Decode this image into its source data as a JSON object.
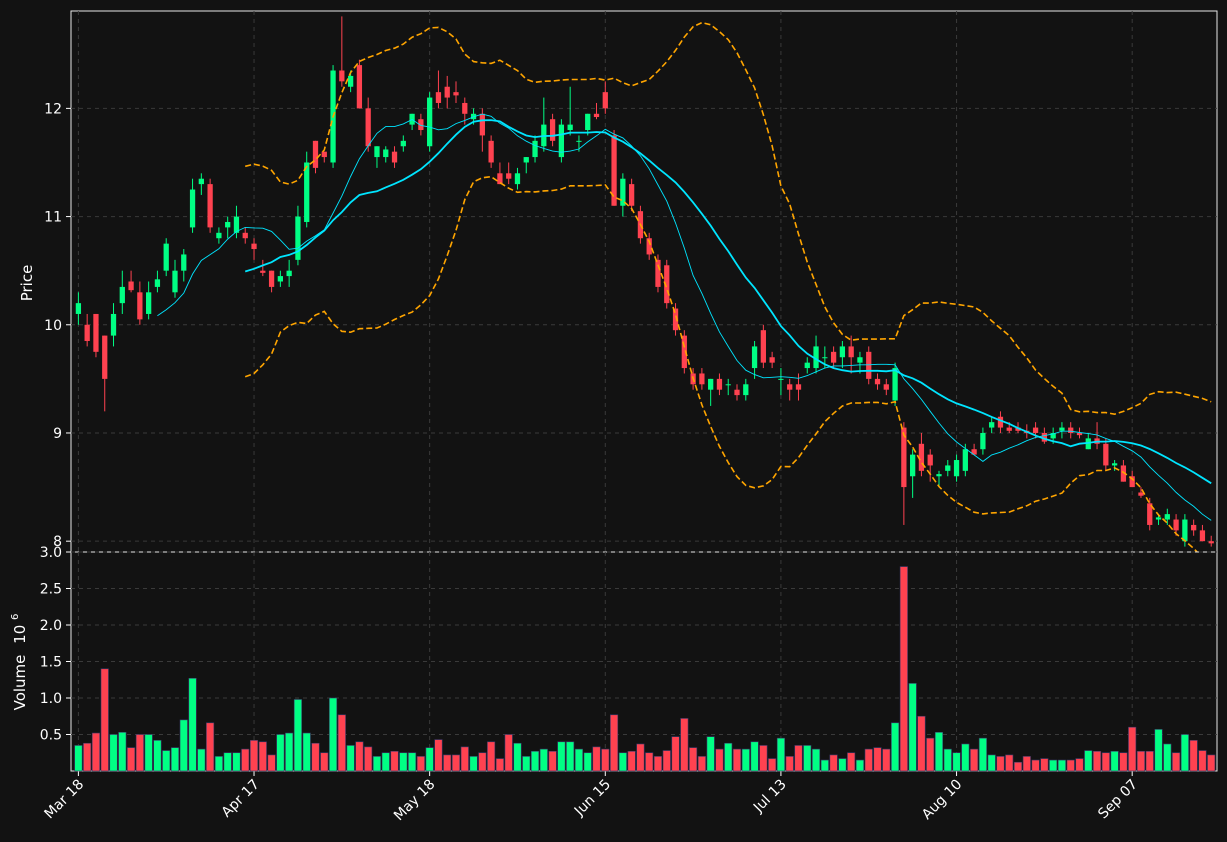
{
  "chart_data": {
    "type": "candlestick",
    "style": {
      "background": "#121212",
      "up_color": "#00ff84",
      "down_color": "#ff4250",
      "sma_fast_color": "#00e5ff",
      "sma_slow_color": "#00e5ff",
      "band_color": "#ffa500",
      "grid": true
    },
    "price_panel": {
      "ylabel": "Price",
      "ylim": [
        7.9,
        12.9
      ],
      "yticks": [
        8,
        9,
        10,
        11,
        12
      ]
    },
    "volume_panel": {
      "ylabel": "Volume",
      "exponent_label": "10",
      "exponent_power": "6",
      "ylim": [
        0,
        3.0
      ],
      "yticks": [
        "0.5",
        "1.0",
        "1.5",
        "2.0",
        "2.5",
        "3.0"
      ]
    },
    "x_axis": {
      "tick_labels": [
        "Mar 18",
        "Apr 17",
        "May 18",
        "Jun 15",
        "Jul 13",
        "Aug 10",
        "Sep 07"
      ],
      "tick_index": [
        0,
        20,
        40,
        60,
        80,
        100,
        120
      ],
      "count": 130
    },
    "candles": [
      [
        10.1,
        10.3,
        10.0,
        10.2
      ],
      [
        10.0,
        10.1,
        9.8,
        9.85
      ],
      [
        10.1,
        10.1,
        9.7,
        9.75
      ],
      [
        9.9,
        9.9,
        9.2,
        9.5
      ],
      [
        9.9,
        10.2,
        9.8,
        10.1
      ],
      [
        10.2,
        10.5,
        10.1,
        10.35
      ],
      [
        10.4,
        10.5,
        10.3,
        10.32
      ],
      [
        10.3,
        10.4,
        10.0,
        10.05
      ],
      [
        10.1,
        10.4,
        10.05,
        10.3
      ],
      [
        10.35,
        10.5,
        10.3,
        10.42
      ],
      [
        10.5,
        10.8,
        10.45,
        10.75
      ],
      [
        10.3,
        10.6,
        10.25,
        10.5
      ],
      [
        10.5,
        10.7,
        10.4,
        10.65
      ],
      [
        10.9,
        11.35,
        10.85,
        11.25
      ],
      [
        11.3,
        11.4,
        11.2,
        11.35
      ],
      [
        11.3,
        11.35,
        10.85,
        10.9
      ],
      [
        10.8,
        10.9,
        10.75,
        10.85
      ],
      [
        10.9,
        11.0,
        10.8,
        10.95
      ],
      [
        10.85,
        11.1,
        10.8,
        11.0
      ],
      [
        10.85,
        10.9,
        10.75,
        10.8
      ],
      [
        10.75,
        10.8,
        10.6,
        10.7
      ],
      [
        10.5,
        10.6,
        10.45,
        10.48
      ],
      [
        10.5,
        10.5,
        10.3,
        10.35
      ],
      [
        10.4,
        10.5,
        10.35,
        10.45
      ],
      [
        10.45,
        10.6,
        10.35,
        10.5
      ],
      [
        10.6,
        11.1,
        10.55,
        11.0
      ],
      [
        10.95,
        11.6,
        10.9,
        11.5
      ],
      [
        11.7,
        11.7,
        11.4,
        11.45
      ],
      [
        11.6,
        11.6,
        11.5,
        11.55
      ],
      [
        11.5,
        12.4,
        11.45,
        12.35
      ],
      [
        12.35,
        12.85,
        12.2,
        12.25
      ],
      [
        12.2,
        12.35,
        12.15,
        12.3
      ],
      [
        12.4,
        12.45,
        12.0,
        12.0
      ],
      [
        12.0,
        12.1,
        11.6,
        11.65
      ],
      [
        11.55,
        11.65,
        11.45,
        11.65
      ],
      [
        11.55,
        11.65,
        11.5,
        11.62
      ],
      [
        11.6,
        11.65,
        11.45,
        11.5
      ],
      [
        11.65,
        11.75,
        11.6,
        11.7
      ],
      [
        11.85,
        11.95,
        11.8,
        11.95
      ],
      [
        11.9,
        11.95,
        11.75,
        11.8
      ],
      [
        11.65,
        12.15,
        11.6,
        12.1
      ],
      [
        12.15,
        12.35,
        12.0,
        12.05
      ],
      [
        12.2,
        12.3,
        12.0,
        12.1
      ],
      [
        12.15,
        12.25,
        12.05,
        12.12
      ],
      [
        12.05,
        12.1,
        11.85,
        11.95
      ],
      [
        11.9,
        12.0,
        11.85,
        11.95
      ],
      [
        11.95,
        12.0,
        11.6,
        11.75
      ],
      [
        11.7,
        11.75,
        11.45,
        11.5
      ],
      [
        11.4,
        11.5,
        11.3,
        11.3
      ],
      [
        11.4,
        11.5,
        11.3,
        11.35
      ],
      [
        11.3,
        11.45,
        11.25,
        11.4
      ],
      [
        11.5,
        11.55,
        11.4,
        11.55
      ],
      [
        11.55,
        11.75,
        11.5,
        11.7
      ],
      [
        11.65,
        12.1,
        11.6,
        11.85
      ],
      [
        11.9,
        11.95,
        11.65,
        11.7
      ],
      [
        11.55,
        11.9,
        11.5,
        11.85
      ],
      [
        11.8,
        12.2,
        11.75,
        11.85
      ],
      [
        11.7,
        11.75,
        11.6,
        11.7
      ],
      [
        11.8,
        11.95,
        11.75,
        11.95
      ],
      [
        11.95,
        12.05,
        11.9,
        11.92
      ],
      [
        12.15,
        12.25,
        11.95,
        12.0
      ],
      [
        11.75,
        11.8,
        11.1,
        11.1
      ],
      [
        11.1,
        11.4,
        11.0,
        11.35
      ],
      [
        11.3,
        11.35,
        11.05,
        11.1
      ],
      [
        11.05,
        11.1,
        10.75,
        10.8
      ],
      [
        10.8,
        10.85,
        10.6,
        10.65
      ],
      [
        10.6,
        10.65,
        10.3,
        10.35
      ],
      [
        10.55,
        10.6,
        10.15,
        10.2
      ],
      [
        10.15,
        10.2,
        9.9,
        9.95
      ],
      [
        9.9,
        9.95,
        9.55,
        9.6
      ],
      [
        9.55,
        9.6,
        9.4,
        9.45
      ],
      [
        9.55,
        9.6,
        9.4,
        9.45
      ],
      [
        9.4,
        9.5,
        9.25,
        9.5
      ],
      [
        9.5,
        9.55,
        9.35,
        9.4
      ],
      [
        9.45,
        9.5,
        9.35,
        9.45
      ],
      [
        9.4,
        9.45,
        9.3,
        9.35
      ],
      [
        9.35,
        9.5,
        9.3,
        9.45
      ],
      [
        9.6,
        9.85,
        9.5,
        9.8
      ],
      [
        9.95,
        10.0,
        9.6,
        9.65
      ],
      [
        9.7,
        9.75,
        9.6,
        9.65
      ],
      [
        9.5,
        9.6,
        9.35,
        9.5
      ],
      [
        9.45,
        9.5,
        9.3,
        9.4
      ],
      [
        9.45,
        9.55,
        9.3,
        9.4
      ],
      [
        9.6,
        9.7,
        9.55,
        9.65
      ],
      [
        9.6,
        9.9,
        9.55,
        9.8
      ],
      [
        9.7,
        9.8,
        9.6,
        9.7
      ],
      [
        9.75,
        9.8,
        9.6,
        9.65
      ],
      [
        9.7,
        9.85,
        9.6,
        9.8
      ],
      [
        9.8,
        9.9,
        9.55,
        9.7
      ],
      [
        9.65,
        9.75,
        9.55,
        9.7
      ],
      [
        9.75,
        9.8,
        9.45,
        9.5
      ],
      [
        9.5,
        9.55,
        9.4,
        9.45
      ],
      [
        9.45,
        9.5,
        9.35,
        9.4
      ],
      [
        9.3,
        9.65,
        9.25,
        9.6
      ],
      [
        9.05,
        9.1,
        8.15,
        8.5
      ],
      [
        8.6,
        8.85,
        8.4,
        8.8
      ],
      [
        8.9,
        9.0,
        8.6,
        8.65
      ],
      [
        8.8,
        8.85,
        8.55,
        8.7
      ],
      [
        8.6,
        8.65,
        8.5,
        8.62
      ],
      [
        8.65,
        8.75,
        8.6,
        8.7
      ],
      [
        8.6,
        8.8,
        8.55,
        8.75
      ],
      [
        8.65,
        8.9,
        8.6,
        8.85
      ],
      [
        8.85,
        8.9,
        8.8,
        8.8
      ],
      [
        8.85,
        9.05,
        8.8,
        9.0
      ],
      [
        9.05,
        9.15,
        9.0,
        9.1
      ],
      [
        9.15,
        9.2,
        9.0,
        9.05
      ],
      [
        9.05,
        9.1,
        9.0,
        9.02
      ],
      [
        9.05,
        9.1,
        9.0,
        9.02
      ],
      [
        9.02,
        9.08,
        8.95,
        9.0
      ],
      [
        9.05,
        9.1,
        8.95,
        9.0
      ],
      [
        9.0,
        9.05,
        8.9,
        8.92
      ],
      [
        8.95,
        9.05,
        8.9,
        9.0
      ],
      [
        9.02,
        9.1,
        8.95,
        9.05
      ],
      [
        9.05,
        9.1,
        8.95,
        9.0
      ],
      [
        9.0,
        9.05,
        8.95,
        8.98
      ],
      [
        8.85,
        9.0,
        8.85,
        8.95
      ],
      [
        8.95,
        9.1,
        8.85,
        8.9
      ],
      [
        8.9,
        8.95,
        8.65,
        8.7
      ],
      [
        8.7,
        8.75,
        8.65,
        8.72
      ],
      [
        8.7,
        8.75,
        8.55,
        8.55
      ],
      [
        8.6,
        8.65,
        8.5,
        8.5
      ],
      [
        8.45,
        8.5,
        8.4,
        8.42
      ],
      [
        8.35,
        8.4,
        8.1,
        8.15
      ],
      [
        8.2,
        8.25,
        8.15,
        8.22
      ],
      [
        8.2,
        8.3,
        8.15,
        8.25
      ],
      [
        8.2,
        8.25,
        8.05,
        8.1
      ],
      [
        8.0,
        8.25,
        7.95,
        8.2
      ],
      [
        8.15,
        8.2,
        8.05,
        8.1
      ],
      [
        8.1,
        8.15,
        8.0,
        8.0
      ],
      [
        8.0,
        8.05,
        7.95,
        7.98
      ]
    ],
    "volume": [
      0.35,
      0.38,
      0.52,
      1.4,
      0.5,
      0.53,
      0.32,
      0.5,
      0.5,
      0.42,
      0.28,
      0.32,
      0.7,
      1.27,
      0.3,
      0.66,
      0.2,
      0.25,
      0.25,
      0.3,
      0.42,
      0.4,
      0.22,
      0.5,
      0.52,
      0.98,
      0.52,
      0.38,
      0.25,
      1.0,
      0.77,
      0.35,
      0.4,
      0.33,
      0.2,
      0.25,
      0.27,
      0.25,
      0.25,
      0.2,
      0.32,
      0.43,
      0.22,
      0.22,
      0.33,
      0.2,
      0.25,
      0.4,
      0.17,
      0.5,
      0.38,
      0.2,
      0.27,
      0.3,
      0.27,
      0.4,
      0.4,
      0.3,
      0.25,
      0.33,
      0.3,
      0.77,
      0.25,
      0.27,
      0.37,
      0.25,
      0.2,
      0.28,
      0.47,
      0.72,
      0.32,
      0.2,
      0.47,
      0.3,
      0.38,
      0.3,
      0.3,
      0.4,
      0.35,
      0.17,
      0.45,
      0.2,
      0.35,
      0.35,
      0.3,
      0.15,
      0.22,
      0.17,
      0.25,
      0.15,
      0.3,
      0.32,
      0.3,
      0.66,
      2.8,
      1.2,
      0.75,
      0.45,
      0.53,
      0.3,
      0.25,
      0.37,
      0.3,
      0.45,
      0.22,
      0.2,
      0.22,
      0.12,
      0.2,
      0.15,
      0.17,
      0.15,
      0.15,
      0.15,
      0.17,
      0.28,
      0.27,
      0.25,
      0.27,
      0.25,
      0.6,
      0.27,
      0.27,
      0.57,
      0.37,
      0.25,
      0.5,
      0.42,
      0.28,
      0.22
    ]
  }
}
